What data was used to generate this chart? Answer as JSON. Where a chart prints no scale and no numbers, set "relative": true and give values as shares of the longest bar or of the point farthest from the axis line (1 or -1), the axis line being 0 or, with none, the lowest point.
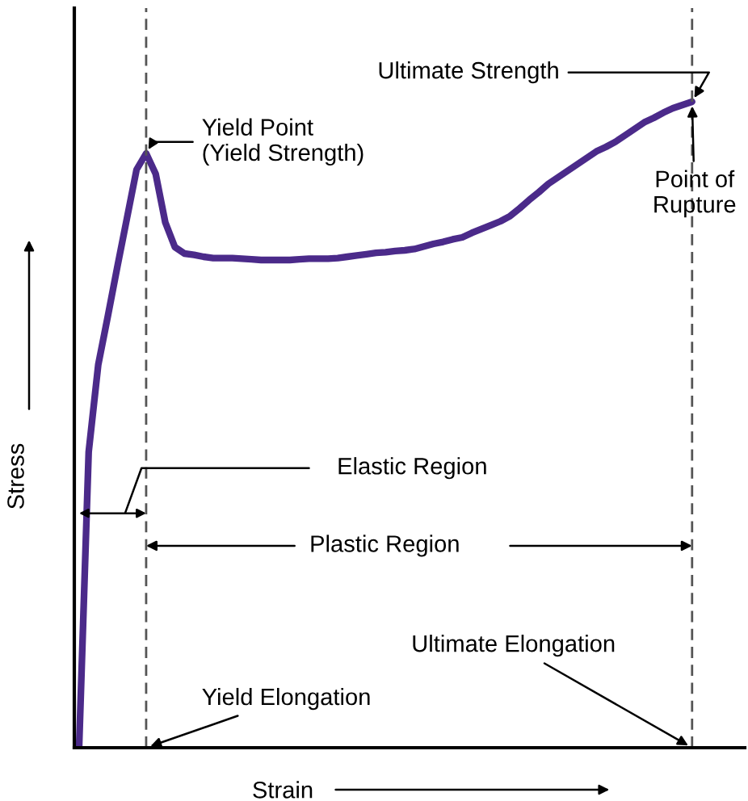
{
  "chart_data": {
    "type": "line",
    "relative": true,
    "xlabel": "Strain",
    "ylabel": "Stress",
    "categories": [
      null,
      null,
      null,
      null,
      null,
      null,
      null,
      null,
      null,
      null,
      null,
      null,
      null,
      null,
      null,
      null,
      null,
      null,
      null,
      null,
      null,
      null,
      null,
      null,
      null,
      null,
      null,
      null,
      null,
      null,
      null,
      null,
      null,
      null,
      null,
      null,
      null,
      null,
      null,
      null,
      null,
      null,
      null,
      null,
      null,
      null,
      null,
      null,
      null,
      null,
      null,
      null,
      null,
      null,
      null,
      null,
      null,
      null,
      null,
      null,
      null,
      null,
      null,
      null,
      null,
      null,
      null,
      null,
      null,
      null
    ],
    "series": [
      {
        "color": "#4b2a8a",
        "values": [
          0,
          0.458,
          0.593,
          0.668,
          0.745,
          0.82,
          0.895,
          0.92,
          0.888,
          0.813,
          0.775,
          0.765,
          0.763,
          0.76,
          0.758,
          0.758,
          0.758,
          0.757,
          0.756,
          0.755,
          0.755,
          0.755,
          0.755,
          0.756,
          0.757,
          0.757,
          0.757,
          0.758,
          0.76,
          0.762,
          0.764,
          0.766,
          0.767,
          0.769,
          0.77,
          0.772,
          0.776,
          0.78,
          0.783,
          0.787,
          0.79,
          0.797,
          0.803,
          0.809,
          0.815,
          0.823,
          0.835,
          0.848,
          0.86,
          0.873,
          0.883,
          0.893,
          0.903,
          0.913,
          0.923,
          0.93,
          0.938,
          0.948,
          0.958,
          0.968,
          0.975,
          0.983,
          0.99,
          0.995,
          1,
          null,
          null,
          null,
          null,
          null
        ]
      }
    ],
    "marker": "none",
    "line_style": "solid",
    "legend": false,
    "annotations": [
      "Ultimate Strength",
      "Yield Point\n(Yield Strength)",
      "Point of\nRupture",
      "Elastic Region",
      "Plastic Region",
      "Ultimate Elongation",
      "Yield Elongation"
    ]
  }
}
